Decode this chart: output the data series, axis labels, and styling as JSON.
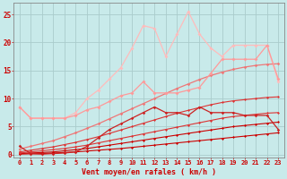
{
  "title": "",
  "xlabel": "Vent moyen/en rafales ( km/h )",
  "bg_color": "#c8eaea",
  "grid_color": "#aacccc",
  "x": [
    0,
    1,
    2,
    3,
    4,
    5,
    6,
    7,
    8,
    9,
    10,
    11,
    12,
    13,
    14,
    15,
    16,
    17,
    18,
    19,
    20,
    21,
    22,
    23
  ],
  "lines": [
    {
      "y": [
        0.1,
        0.15,
        0.2,
        0.3,
        0.4,
        0.5,
        0.65,
        0.8,
        0.95,
        1.1,
        1.3,
        1.5,
        1.7,
        1.9,
        2.1,
        2.3,
        2.5,
        2.7,
        2.9,
        3.1,
        3.3,
        3.5,
        3.7,
        3.9
      ],
      "color": "#cc0000",
      "lw": 0.8,
      "marker": "D",
      "ms": 1.5,
      "zorder": 3
    },
    {
      "y": [
        0.2,
        0.3,
        0.4,
        0.5,
        0.7,
        0.9,
        1.1,
        1.4,
        1.7,
        2.0,
        2.3,
        2.6,
        2.9,
        3.2,
        3.5,
        3.8,
        4.1,
        4.4,
        4.7,
        5.0,
        5.2,
        5.4,
        5.6,
        5.8
      ],
      "color": "#cc0000",
      "lw": 0.8,
      "marker": "D",
      "ms": 1.5,
      "zorder": 3
    },
    {
      "y": [
        0.3,
        0.5,
        0.7,
        0.9,
        1.1,
        1.4,
        1.7,
        2.1,
        2.5,
        2.9,
        3.3,
        3.7,
        4.1,
        4.5,
        4.9,
        5.3,
        5.7,
        6.1,
        6.5,
        6.8,
        7.0,
        7.2,
        7.4,
        7.5
      ],
      "color": "#dd3333",
      "lw": 0.8,
      "marker": "D",
      "ms": 1.5,
      "zorder": 3
    },
    {
      "y": [
        0.5,
        0.8,
        1.1,
        1.4,
        1.8,
        2.2,
        2.7,
        3.2,
        3.8,
        4.4,
        5.0,
        5.6,
        6.2,
        6.8,
        7.4,
        7.9,
        8.4,
        8.9,
        9.3,
        9.6,
        9.8,
        10.0,
        10.2,
        10.3
      ],
      "color": "#dd3333",
      "lw": 0.8,
      "marker": "D",
      "ms": 1.5,
      "zorder": 3
    },
    {
      "y": [
        1.0,
        1.5,
        2.0,
        2.5,
        3.2,
        3.9,
        4.7,
        5.5,
        6.4,
        7.3,
        8.2,
        9.1,
        10.0,
        10.9,
        11.8,
        12.6,
        13.4,
        14.1,
        14.7,
        15.2,
        15.6,
        15.9,
        16.1,
        16.2
      ],
      "color": "#ee7777",
      "lw": 0.9,
      "marker": "D",
      "ms": 1.8,
      "zorder": 3
    },
    {
      "y": [
        1.5,
        0.2,
        0.1,
        0.2,
        0.3,
        0.5,
        1.5,
        3.0,
        4.5,
        5.5,
        6.5,
        7.5,
        8.5,
        7.5,
        7.5,
        7.0,
        8.5,
        7.5,
        7.5,
        7.5,
        7.0,
        7.0,
        7.0,
        4.5
      ],
      "color": "#cc2222",
      "lw": 0.9,
      "marker": "D",
      "ms": 1.8,
      "zorder": 4
    },
    {
      "y": [
        8.5,
        6.5,
        6.5,
        6.5,
        6.5,
        7.0,
        8.0,
        8.5,
        9.5,
        10.5,
        11.0,
        13.0,
        11.0,
        11.0,
        11.0,
        11.5,
        12.0,
        14.5,
        17.0,
        17.0,
        17.0,
        17.0,
        19.5,
        13.5
      ],
      "color": "#ff9999",
      "lw": 0.9,
      "marker": "D",
      "ms": 2.0,
      "zorder": 4
    },
    {
      "y": [
        8.5,
        6.5,
        6.5,
        6.5,
        6.5,
        7.5,
        10.0,
        11.5,
        13.5,
        15.5,
        19.0,
        23.0,
        22.5,
        17.5,
        21.5,
        25.5,
        21.5,
        19.0,
        17.5,
        19.5,
        19.5,
        19.5,
        19.5,
        13.0
      ],
      "color": "#ffbbbb",
      "lw": 0.9,
      "marker": "D",
      "ms": 2.0,
      "zorder": 2
    }
  ],
  "ylim": [
    -0.5,
    27
  ],
  "xlim": [
    -0.5,
    23.5
  ],
  "yticks": [
    0,
    5,
    10,
    15,
    20,
    25
  ],
  "xticks": [
    0,
    1,
    2,
    3,
    4,
    5,
    6,
    7,
    8,
    9,
    10,
    11,
    12,
    13,
    14,
    15,
    16,
    17,
    18,
    19,
    20,
    21,
    22,
    23
  ],
  "tick_color": "#cc0000",
  "label_color": "#cc0000",
  "xlabel_fontsize": 6.0,
  "tick_fontsize": 5.0
}
